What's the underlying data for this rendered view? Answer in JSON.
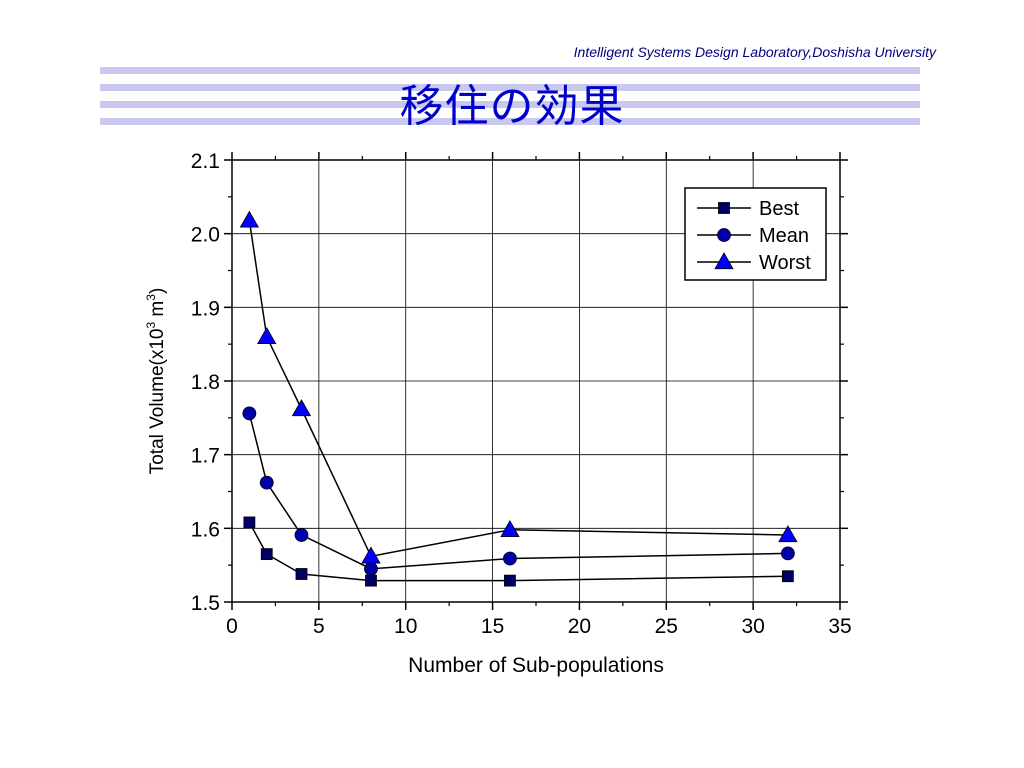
{
  "header": {
    "organization": "Intelligent Systems Design Laboratory,Doshisha University"
  },
  "slide": {
    "title": "移住の効果"
  },
  "colors": {
    "title": "#0000cc",
    "header_text": "#000080",
    "deco_stripe": "#c8c8f0",
    "best": "#000066",
    "mean": "#0000aa",
    "worst": "#0000ff"
  },
  "chart_data": {
    "type": "line",
    "xlabel": "Number of Sub-populations",
    "ylabel_main": "Total Volume(x10",
    "ylabel_sup1": "3",
    "ylabel_mid": " m",
    "ylabel_sup2": "3",
    "ylabel_end": ")",
    "xlim": [
      0,
      35
    ],
    "ylim": [
      1.5,
      2.1
    ],
    "xticks": [
      0,
      5,
      10,
      15,
      20,
      25,
      30,
      35
    ],
    "yticks": [
      1.5,
      1.6,
      1.7,
      1.8,
      1.9,
      2.0,
      2.1
    ],
    "ytick_labels": [
      "1.5",
      "1.6",
      "1.7",
      "1.8",
      "1.9",
      "2.0",
      "2.1"
    ],
    "grid": true,
    "legend_position": "top-right",
    "x": [
      1,
      2,
      4,
      8,
      16,
      32
    ],
    "series": [
      {
        "name": "Best",
        "marker": "square",
        "values": [
          1.608,
          1.565,
          1.538,
          1.529,
          1.529,
          1.535
        ]
      },
      {
        "name": "Mean",
        "marker": "circle",
        "values": [
          1.756,
          1.662,
          1.591,
          1.545,
          1.559,
          1.566
        ]
      },
      {
        "name": "Worst",
        "marker": "triangle",
        "values": [
          2.018,
          1.86,
          1.762,
          1.562,
          1.598,
          1.591
        ]
      }
    ]
  }
}
